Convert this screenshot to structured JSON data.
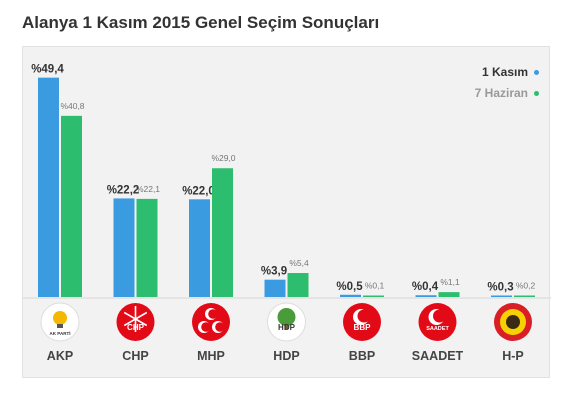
{
  "chart_data": {
    "type": "bar",
    "title": "Alanya 1 Kasım 2015 Genel Seçim Sonuçları",
    "categories": [
      "AKP",
      "CHP",
      "MHP",
      "HDP",
      "BBP",
      "SAADET",
      "H-P"
    ],
    "value_prefix": "%",
    "series": [
      {
        "name": "1 Kasım",
        "color": "#3b9be0",
        "values": [
          49.4,
          22.2,
          22.0,
          3.9,
          0.5,
          0.4,
          0.3
        ]
      },
      {
        "name": "7 Haziran",
        "color": "#2dbd6e",
        "values": [
          40.8,
          22.1,
          29.0,
          5.4,
          0.1,
          1.1,
          0.2
        ]
      }
    ],
    "ylim": [
      0,
      50
    ],
    "grid": false,
    "legend": "top-right"
  },
  "logos": [
    {
      "party": "AKP",
      "icon": "akp-bulb-logo",
      "bg": "#ffffff",
      "fg": "#f5b800",
      "text": "AK PARTİ"
    },
    {
      "party": "CHP",
      "icon": "chp-six-arrows-logo",
      "bg": "#e30a17",
      "fg": "#ffffff",
      "text": "CHP"
    },
    {
      "party": "MHP",
      "icon": "mhp-three-crescents-logo",
      "bg": "#e30a17",
      "fg": "#ffffff",
      "text": ""
    },
    {
      "party": "HDP",
      "icon": "hdp-tree-logo",
      "bg": "#ffffff",
      "fg": "#4a9b3a",
      "text": "HDP"
    },
    {
      "party": "BBP",
      "icon": "bbp-crescent-logo",
      "bg": "#e30a17",
      "fg": "#ffffff",
      "text": "BBP"
    },
    {
      "party": "SAADET",
      "icon": "saadet-crescent-logo",
      "bg": "#e30a17",
      "fg": "#ffffff",
      "text": "SAADET"
    },
    {
      "party": "H-P",
      "icon": "hp-emblem-logo",
      "bg": "#d81f26",
      "fg": "#f6d000",
      "text": ""
    }
  ]
}
